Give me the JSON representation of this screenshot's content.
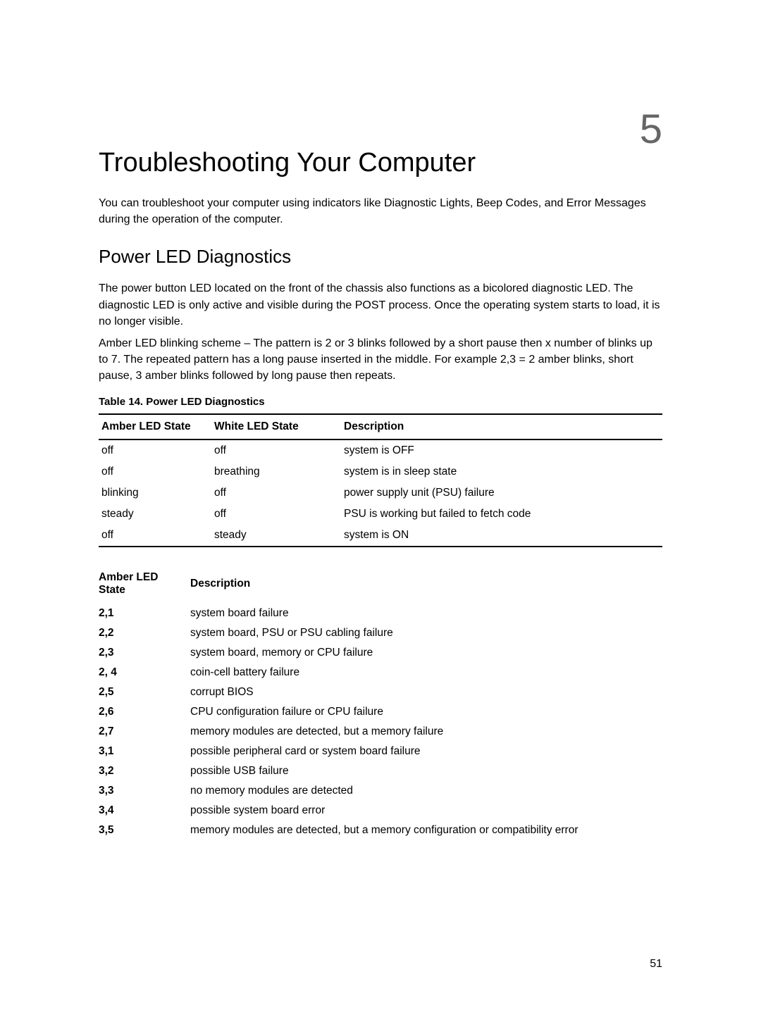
{
  "chapter_number": "5",
  "title": "Troubleshooting Your Computer",
  "intro": "You can troubleshoot your computer using indicators like Diagnostic Lights, Beep Codes, and Error Messages during the operation of the computer.",
  "section_title": "Power LED Diagnostics",
  "para1": "The power button LED located on the front of the chassis also functions as a bicolored diagnostic LED. The diagnostic LED is only active and visible during the POST process. Once the operating system starts to load, it is no longer visible.",
  "para2": "Amber LED blinking scheme – The pattern is 2 or 3 blinks followed by a short pause then x number of blinks up to 7. The repeated pattern has a long pause inserted in the middle. For example 2,3 = 2 amber blinks, short pause, 3 amber blinks followed by long pause then repeats.",
  "table_caption": "Table 14. Power LED Diagnostics",
  "table1": {
    "headers": {
      "amber": "Amber LED State",
      "white": "White LED State",
      "desc": "Description"
    },
    "rows": [
      {
        "amber": "off",
        "white": "off",
        "desc": "system is OFF"
      },
      {
        "amber": "off",
        "white": "breathing",
        "desc": "system is in sleep state"
      },
      {
        "amber": "blinking",
        "white": "off",
        "desc": "power supply unit (PSU) failure"
      },
      {
        "amber": "steady",
        "white": "off",
        "desc": "PSU is working but failed to fetch code"
      },
      {
        "amber": "off",
        "white": "steady",
        "desc": "system is ON"
      }
    ]
  },
  "table2": {
    "headers": {
      "code": "Amber LED State",
      "desc": "Description"
    },
    "rows": [
      {
        "code": "2,1",
        "desc": "system board failure"
      },
      {
        "code": "2,2",
        "desc": "system board, PSU or PSU cabling failure"
      },
      {
        "code": "2,3",
        "desc": "system board, memory or CPU failure"
      },
      {
        "code": "2, 4",
        "desc": "coin-cell battery failure"
      },
      {
        "code": "2,5",
        "desc": "corrupt BIOS"
      },
      {
        "code": "2,6",
        "desc": "CPU configuration failure or CPU failure"
      },
      {
        "code": "2,7",
        "desc": "memory modules are detected, but a memory failure"
      },
      {
        "code": "3,1",
        "desc": "possible peripheral card or system board failure"
      },
      {
        "code": "3,2",
        "desc": "possible USB failure"
      },
      {
        "code": "3,3",
        "desc": "no memory modules are detected"
      },
      {
        "code": "3,4",
        "desc": "possible system board error"
      },
      {
        "code": "3,5",
        "desc": "memory modules are detected, but a memory configuration or compatibility error"
      }
    ]
  },
  "page_number": "51"
}
